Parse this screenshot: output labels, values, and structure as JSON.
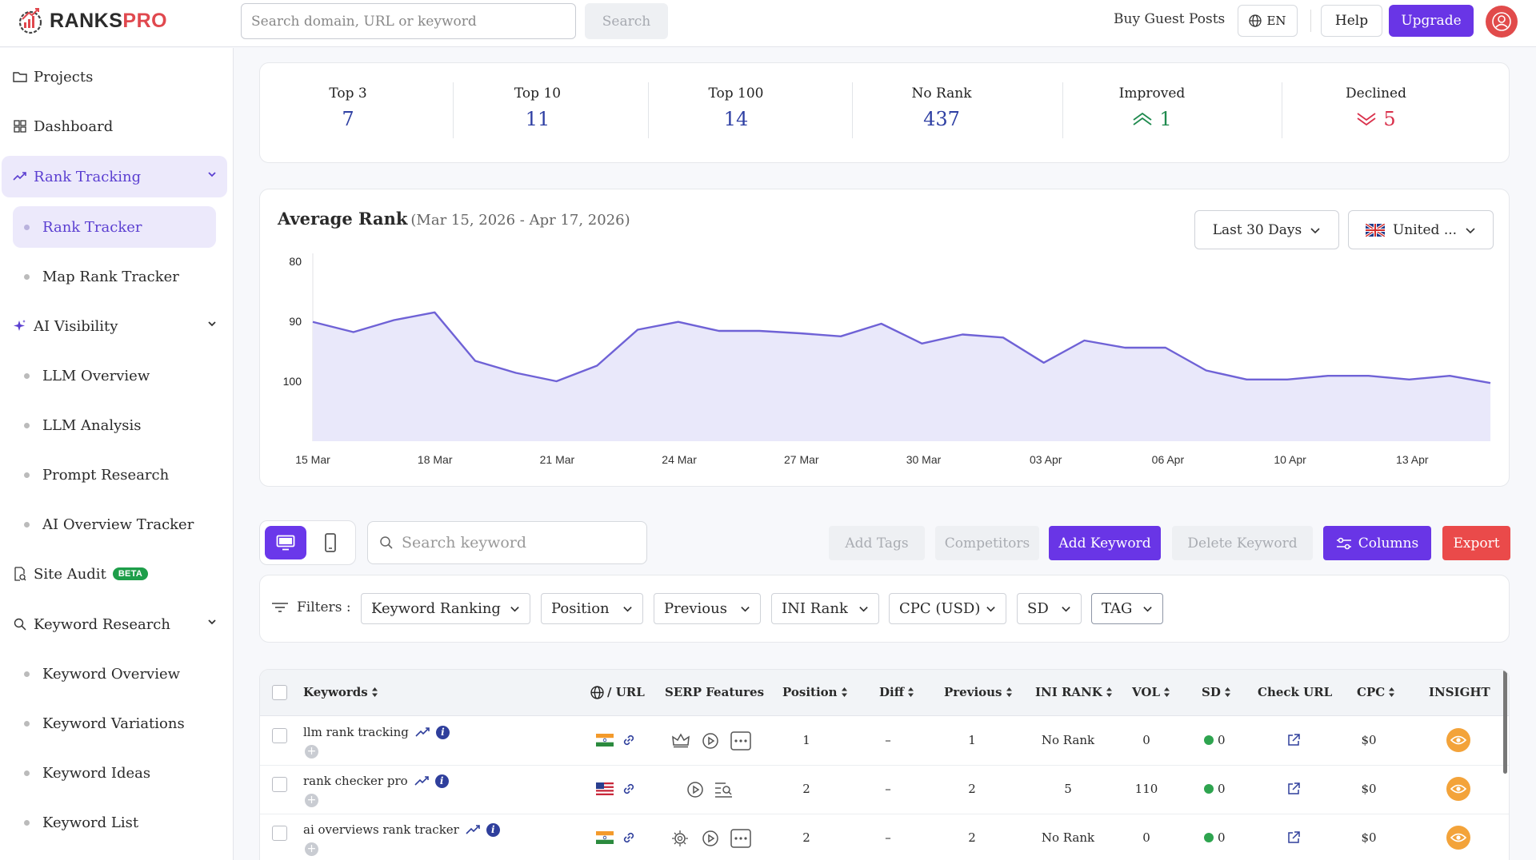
{
  "header": {
    "brand_main": "RANKS",
    "brand_accent": "PRO",
    "search_placeholder": "Search domain, URL or keyword",
    "search_button": "Search",
    "buy_guest_posts": "Buy Guest Posts",
    "language": "EN",
    "help": "Help",
    "upgrade": "Upgrade"
  },
  "sidebar": {
    "projects": "Projects",
    "dashboard": "Dashboard",
    "rank_tracking": "Rank Tracking",
    "rank_tracker": "Rank Tracker",
    "map_rank_tracker": "Map Rank Tracker",
    "ai_visibility": "AI Visibility",
    "llm_overview": "LLM Overview",
    "llm_analysis": "LLM Analysis",
    "prompt_research": "Prompt Research",
    "ai_overview_tracker": "AI Overview Tracker",
    "site_audit": "Site Audit",
    "beta": "BETA",
    "keyword_research": "Keyword Research",
    "keyword_overview": "Keyword Overview",
    "keyword_variations": "Keyword Variations",
    "keyword_ideas": "Keyword Ideas",
    "keyword_list": "Keyword List"
  },
  "stats": {
    "top3_label": "Top 3",
    "top3_value": "7",
    "top10_label": "Top 10",
    "top10_value": "11",
    "top100_label": "Top 100",
    "top100_value": "14",
    "norank_label": "No Rank",
    "norank_value": "437",
    "improved_label": "Improved",
    "improved_value": "1",
    "declined_label": "Declined",
    "declined_value": "5"
  },
  "chart_header": {
    "title": "Average Rank",
    "range": "(Mar 15, 2026 - Apr 17, 2026)",
    "period": "Last 30 Days",
    "country": "United ..."
  },
  "chart_data": {
    "type": "area",
    "title": "Average Rank",
    "subtitle": "(Mar 15, 2026 - Apr 17, 2026)",
    "x_ticks": [
      "15 Mar",
      "18 Mar",
      "21 Mar",
      "24 Mar",
      "27 Mar",
      "30 Mar",
      "03 Apr",
      "06 Apr",
      "10 Apr",
      "13 Apr"
    ],
    "y_ticks": [
      80,
      90,
      100
    ],
    "ylim": [
      80,
      110
    ],
    "y_inverted": true,
    "x": [
      "15 Mar",
      "16 Mar",
      "17 Mar",
      "18 Mar",
      "19 Mar",
      "20 Mar",
      "21 Mar",
      "22 Mar",
      "23 Mar",
      "24 Mar",
      "25 Mar",
      "26 Mar",
      "27 Mar",
      "28 Mar",
      "29 Mar",
      "30 Mar",
      "01 Apr",
      "02 Apr",
      "03 Apr",
      "04 Apr",
      "05 Apr",
      "06 Apr",
      "08 Apr",
      "10 Apr",
      "11 Apr",
      "12 Apr",
      "13 Apr",
      "14 Apr",
      "15 Apr",
      "17 Apr"
    ],
    "values": [
      90.1,
      91.8,
      89.8,
      88.5,
      96.6,
      98.6,
      100.0,
      97.4,
      91.4,
      90.1,
      91.6,
      91.6,
      92.0,
      92.5,
      90.4,
      93.7,
      92.2,
      92.7,
      96.9,
      93.2,
      94.4,
      94.4,
      98.2,
      99.7,
      99.7,
      99.1,
      99.1,
      99.7,
      99.1,
      100.3
    ],
    "fill_color": "#e9e8fa",
    "line_color": "#6f62d6",
    "grid": false
  },
  "toolbar": {
    "search_placeholder": "Search keyword",
    "add_tags": "Add Tags",
    "competitors": "Competitors",
    "add_keyword": "Add Keyword",
    "delete_keyword": "Delete Keyword",
    "columns": "Columns",
    "export": "Export"
  },
  "filters": {
    "label": "Filters :",
    "keyword_ranking": "Keyword Ranking",
    "position": "Position",
    "previous": "Previous",
    "ini_rank": "INI Rank",
    "cpc": "CPC (USD)",
    "sd": "SD",
    "tag": "TAG"
  },
  "table": {
    "headers": {
      "keywords": "Keywords",
      "url": "/ URL",
      "serp": "SERP Features",
      "position": "Position",
      "diff": "Diff",
      "previous": "Previous",
      "ini_rank": "INI RANK",
      "vol": "VOL",
      "sd": "SD",
      "check_url": "Check URL",
      "cpc": "CPC",
      "insight": "INSIGHT"
    },
    "rows": [
      {
        "keyword": "llm rank tracking",
        "flag": "india",
        "position": "1",
        "diff": "–",
        "previous": "1",
        "ini_rank": "No Rank",
        "vol": "0",
        "sd": "0",
        "cpc": "$0"
      },
      {
        "keyword": "rank checker pro",
        "flag": "usa",
        "position": "2",
        "diff": "–",
        "previous": "2",
        "ini_rank": "5",
        "vol": "110",
        "sd": "0",
        "cpc": "$0"
      },
      {
        "keyword": "ai overviews rank tracker",
        "flag": "india",
        "position": "2",
        "diff": "–",
        "previous": "2",
        "ini_rank": "No Rank",
        "vol": "0",
        "sd": "0",
        "cpc": "$0"
      }
    ]
  }
}
